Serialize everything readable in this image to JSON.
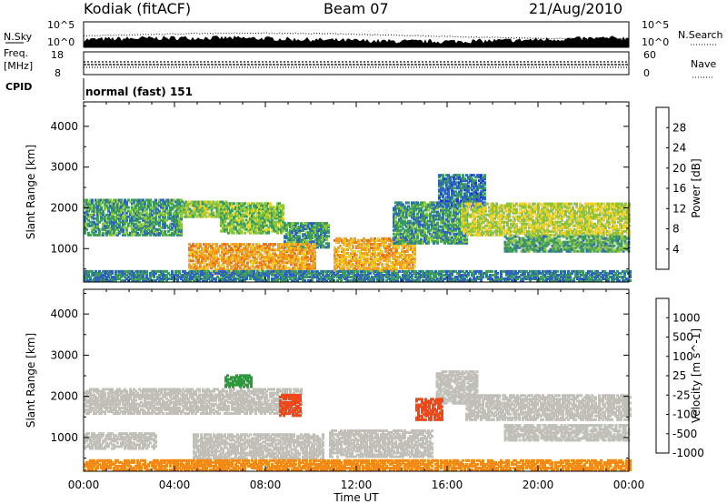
{
  "header": {
    "station": "Kodiak (fitACF)",
    "beam": "Beam 07",
    "date": "21/Aug/2010"
  },
  "strip": {
    "nsky_label": "N.Sky",
    "nsearch_label": "N.Search",
    "nsky_ticks": [
      "10^5",
      "10^0"
    ],
    "freq_label": "Freq.",
    "freq_unit": "[MHz]",
    "freq_ticks": [
      "18",
      "8"
    ],
    "nave_label": "Nave",
    "nave_ticks": [
      "60",
      "0"
    ],
    "cpid_label": "CPID",
    "cpid_text": "normal (fast) 151"
  },
  "colors": {
    "power": [
      "#2030e0",
      "#3060c0",
      "#3a9a60",
      "#8cc43c",
      "#f0d020",
      "#f2a020",
      "#f07018",
      "#e83020"
    ],
    "velocity": [
      "#e01818",
      "#f04818",
      "#f28a18",
      "#f0c020",
      "#c0c0b8",
      "#7ec84a",
      "#2a9a3a",
      "#2040c0"
    ],
    "background": "#ffffff"
  },
  "chart_data": [
    {
      "type": "heatmap",
      "title": "",
      "xlabel": "Time UT",
      "ylabel": "Slant Range [km]",
      "x_ticks": [
        "00:00",
        "04:00",
        "08:00",
        "12:00",
        "16:00",
        "20:00",
        "00:00"
      ],
      "y_ticks": [
        1000,
        2000,
        3000,
        4000
      ],
      "xlim": [
        0,
        24
      ],
      "ylim": [
        180,
        4600
      ],
      "colorbar": {
        "label": "Power [dB]",
        "ticks": [
          "4",
          "8",
          "12",
          "16",
          "20",
          "24",
          "28"
        ],
        "range": [
          0,
          32
        ]
      },
      "scatter_bands": [
        {
          "t0": 0.0,
          "t1": 4.3,
          "r0": 1300,
          "r1": 2200,
          "value": 10
        },
        {
          "t0": 4.3,
          "t1": 6.3,
          "r0": 1750,
          "r1": 2150,
          "value": 14
        },
        {
          "t0": 6.0,
          "t1": 8.8,
          "r0": 1350,
          "r1": 2100,
          "value": 13
        },
        {
          "t0": 8.8,
          "t1": 10.8,
          "r0": 1000,
          "r1": 1600,
          "value": 10
        },
        {
          "t0": 4.6,
          "t1": 10.2,
          "r0": 350,
          "r1": 1100,
          "value": 22
        },
        {
          "t0": 11.0,
          "t1": 14.6,
          "r0": 400,
          "r1": 1250,
          "value": 21
        },
        {
          "t0": 13.6,
          "t1": 16.8,
          "r0": 1100,
          "r1": 2100,
          "value": 10
        },
        {
          "t0": 15.6,
          "t1": 17.6,
          "r0": 2000,
          "r1": 2800,
          "value": 7
        },
        {
          "t0": 16.6,
          "t1": 24.0,
          "r0": 1300,
          "r1": 2100,
          "value": 16
        },
        {
          "t0": 18.5,
          "t1": 24.0,
          "r0": 900,
          "r1": 1300,
          "value": 11
        },
        {
          "t0": 0.0,
          "t1": 24.0,
          "r0": 180,
          "r1": 420,
          "value": 8
        }
      ]
    },
    {
      "type": "heatmap",
      "title": "",
      "xlabel": "Time UT",
      "ylabel": "Slant Range [km]",
      "x_ticks": [
        "00:00",
        "04:00",
        "08:00",
        "12:00",
        "16:00",
        "20:00",
        "00:00"
      ],
      "y_ticks": [
        1000,
        2000,
        3000,
        4000
      ],
      "xlim": [
        0,
        24
      ],
      "ylim": [
        180,
        4600
      ],
      "colorbar": {
        "label": "Velocity [m s^-1]",
        "ticks": [
          "1000",
          "500",
          "100",
          "25",
          "-25",
          "-100",
          "-500",
          "-1000"
        ]
      },
      "scatter_bands": [
        {
          "t0": 0.0,
          "t1": 9.6,
          "r0": 1550,
          "r1": 2150,
          "value": 0
        },
        {
          "t0": 0.0,
          "t1": 3.2,
          "r0": 700,
          "r1": 1100,
          "value": 0
        },
        {
          "t0": 4.8,
          "t1": 10.5,
          "r0": 450,
          "r1": 1050,
          "value": 0
        },
        {
          "t0": 10.8,
          "t1": 15.3,
          "r0": 500,
          "r1": 1150,
          "value": 0
        },
        {
          "t0": 15.5,
          "t1": 17.3,
          "r0": 1800,
          "r1": 2600,
          "value": 0
        },
        {
          "t0": 16.8,
          "t1": 24.0,
          "r0": 1400,
          "r1": 2000,
          "value": 0
        },
        {
          "t0": 18.5,
          "t1": 24.0,
          "r0": 900,
          "r1": 1300,
          "value": 0
        },
        {
          "t0": 6.2,
          "t1": 7.4,
          "r0": 2200,
          "r1": 2500,
          "value": 300
        },
        {
          "t0": 8.6,
          "t1": 9.5,
          "r0": 1500,
          "r1": 2000,
          "value": -150
        },
        {
          "t0": 14.6,
          "t1": 15.8,
          "r0": 1400,
          "r1": 1900,
          "value": -200
        },
        {
          "t0": 0.0,
          "t1": 24.0,
          "r0": 180,
          "r1": 420,
          "value": -60
        }
      ]
    }
  ]
}
